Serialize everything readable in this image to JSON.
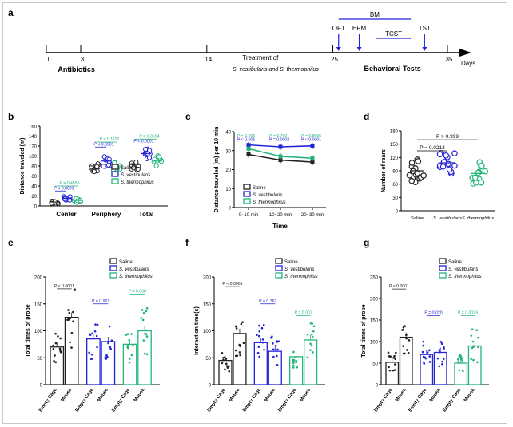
{
  "colors": {
    "saline": "#222222",
    "vestibularis": "#2323d8",
    "thermophilus": "#22b57a",
    "grid": "#000000"
  },
  "timeline": {
    "panel": "a",
    "ticks": [
      "0",
      "3",
      "14",
      "25",
      "35"
    ],
    "tick_days": [
      0,
      3,
      14,
      25,
      35
    ],
    "antibiotics": "Antibiotics",
    "treatment": "Treatment of",
    "treatment_species": "S. vestibularis and S. thermophilus",
    "behavioral": "Behavioral Tests",
    "days": "Days",
    "tests": [
      {
        "label": "OFT",
        "day": 25.5
      },
      {
        "label": "EPM",
        "day": 27.3
      },
      {
        "label": "TST",
        "day": 33.0
      }
    ],
    "bm": {
      "label": "BM",
      "start": 25.5,
      "end": 31.8
    },
    "tcst": {
      "label": "TCST",
      "start": 28.8,
      "end": 31.8
    }
  },
  "chart_data": [
    {
      "panel": "b",
      "type": "scatter",
      "ylabel": "Distance traveled (m)",
      "ylim": [
        0,
        160
      ],
      "yticks": [
        "0",
        "20",
        "40",
        "60",
        "80",
        "100",
        "120",
        "140",
        "160"
      ],
      "categories": [
        "Center",
        "Periphery",
        "Total"
      ],
      "series": [
        {
          "name": "Saline",
          "means": [
            8,
            75,
            83
          ]
        },
        {
          "name": "S. vestibularis",
          "means": [
            15,
            90,
            105
          ]
        },
        {
          "name": "S. thermophilus",
          "means": [
            11,
            80,
            90
          ]
        }
      ],
      "annotations": [
        {
          "text": "P < 0.0001",
          "category": 0,
          "pair": "saline-vestibularis",
          "y": 30,
          "series": 1
        },
        {
          "text": "P = 0.4555",
          "category": 0,
          "pair": "saline-thermophilus",
          "y": 40,
          "series": 2
        },
        {
          "text": "P < 0.0001",
          "category": 1,
          "pair": "saline-vestibularis",
          "y": 118,
          "series": 1
        },
        {
          "text": "P = 0.1121",
          "category": 1,
          "pair": "saline-thermophilus",
          "y": 128,
          "series": 2
        },
        {
          "text": "P < 0.0001",
          "category": 2,
          "pair": "saline-vestibularis",
          "y": 124,
          "series": 1
        },
        {
          "text": "P = 0.8694",
          "category": 2,
          "pair": "saline-thermophilus",
          "y": 134,
          "series": 2
        }
      ]
    },
    {
      "panel": "c",
      "type": "line",
      "ylabel": "Distance traveled (m) per 10 min",
      "xlabel": "Time",
      "ylim": [
        0,
        40
      ],
      "yticks": [
        "0",
        "10",
        "20",
        "30",
        "40"
      ],
      "categories": [
        "0~10 min",
        "10~20 min",
        "20~30 min"
      ],
      "series": [
        {
          "name": "Saline",
          "values": [
            28,
            25,
            24
          ]
        },
        {
          "name": "S. vestibularis",
          "values": [
            33,
            32,
            32.5
          ]
        },
        {
          "name": "S. thermophilus",
          "values": [
            31,
            27,
            26
          ]
        }
      ],
      "annotations": [
        {
          "text": "P = 0.306",
          "series": 2,
          "x": 0,
          "y": 38
        },
        {
          "text": "P < 0.001",
          "series": 1,
          "x": 0,
          "y": 36
        },
        {
          "text": "P = 0.769",
          "series": 2,
          "x": 1,
          "y": 38
        },
        {
          "text": "P = 0.0002",
          "series": 1,
          "x": 1,
          "y": 36
        },
        {
          "text": "P = 0.8595",
          "series": 2,
          "x": 2,
          "y": 38
        },
        {
          "text": "P < 0.0001",
          "series": 1,
          "x": 2,
          "y": 36
        }
      ]
    },
    {
      "panel": "d",
      "type": "scatter",
      "ylabel": "Number of rears",
      "ylim": [
        0,
        180
      ],
      "yticks": [
        "0",
        "30",
        "60",
        "90",
        "120",
        "150",
        "180"
      ],
      "categories": [
        "Saline",
        "S. vestibularis",
        "S. thermophilus"
      ],
      "means": [
        90,
        108,
        84
      ],
      "annotations": [
        {
          "text": "P > 0.999",
          "from": 0,
          "to": 2,
          "y": 160
        },
        {
          "text": "P = 0.0213",
          "from": 0,
          "to": 1,
          "y": 135
        }
      ]
    },
    {
      "panel": "e",
      "type": "bar",
      "ylabel": "Total times of probe",
      "ylim": [
        0,
        200
      ],
      "yticks": [
        "0",
        "50",
        "100",
        "150",
        "200"
      ],
      "categories": [
        "Empty Cage",
        "Mouse"
      ],
      "series": [
        {
          "name": "Saline",
          "values": [
            70,
            125
          ]
        },
        {
          "name": "S. vestibularis",
          "values": [
            85,
            80
          ]
        },
        {
          "name": "S. thermophilus",
          "values": [
            75,
            100
          ]
        }
      ],
      "annotations": [
        {
          "text": "P < 0.0001",
          "series": 0,
          "y": 178
        },
        {
          "text": "P = 0.961",
          "series": 1,
          "y": 150
        },
        {
          "text": "P = 0.008",
          "series": 2,
          "y": 168
        }
      ]
    },
    {
      "panel": "f",
      "type": "bar",
      "ylabel": "Interaction time(s)",
      "ylim": [
        0,
        200
      ],
      "yticks": [
        "0",
        "50",
        "100",
        "150",
        "200"
      ],
      "categories": [
        "Empty Cage",
        "Mouse"
      ],
      "series": [
        {
          "name": "Saline",
          "values": [
            45,
            95
          ]
        },
        {
          "name": "S. vestibularis",
          "values": [
            78,
            62
          ]
        },
        {
          "name": "S. thermophilus",
          "values": [
            52,
            83
          ]
        }
      ],
      "annotations": [
        {
          "text": "P < 0.0001",
          "series": 0,
          "y": 182
        },
        {
          "text": "P = 0.362",
          "series": 1,
          "y": 150
        },
        {
          "text": "P = 0.007",
          "series": 2,
          "y": 128
        }
      ]
    },
    {
      "panel": "g",
      "type": "bar",
      "ylabel": "Total times of probe",
      "ylim": [
        0,
        250
      ],
      "yticks": [
        "0",
        "50",
        "100",
        "150",
        "200",
        "250"
      ],
      "categories": [
        "Empty Cage",
        "Mouse"
      ],
      "series": [
        {
          "name": "Saline",
          "values": [
            52,
            110
          ]
        },
        {
          "name": "S. vestibularis",
          "values": [
            70,
            75
          ]
        },
        {
          "name": "S. thermophilus",
          "values": [
            50,
            90
          ]
        }
      ],
      "annotations": [
        {
          "text": "P < 0.0001",
          "series": 0,
          "y": 222
        },
        {
          "text": "P = 0.020",
          "series": 1,
          "y": 160
        },
        {
          "text": "P = 0.0039",
          "series": 2,
          "y": 160
        }
      ]
    }
  ]
}
